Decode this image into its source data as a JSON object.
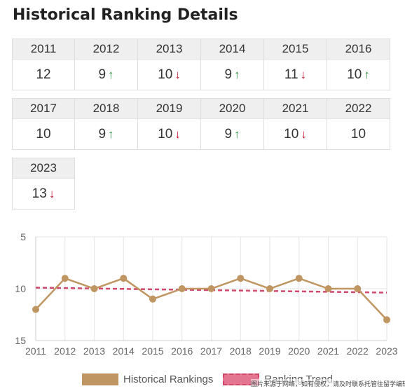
{
  "title": "Historical Ranking Details",
  "table": [
    {
      "year": "2011",
      "rank": "12",
      "trend": ""
    },
    {
      "year": "2012",
      "rank": "9",
      "trend": "up"
    },
    {
      "year": "2013",
      "rank": "10",
      "trend": "down"
    },
    {
      "year": "2014",
      "rank": "9",
      "trend": "up"
    },
    {
      "year": "2015",
      "rank": "11",
      "trend": "down"
    },
    {
      "year": "2016",
      "rank": "10",
      "trend": "up"
    },
    {
      "year": "2017",
      "rank": "10",
      "trend": ""
    },
    {
      "year": "2018",
      "rank": "9",
      "trend": "up"
    },
    {
      "year": "2019",
      "rank": "10",
      "trend": "down"
    },
    {
      "year": "2020",
      "rank": "9",
      "trend": "up"
    },
    {
      "year": "2021",
      "rank": "10",
      "trend": "down"
    },
    {
      "year": "2022",
      "rank": "10",
      "trend": ""
    },
    {
      "year": "2023",
      "rank": "13",
      "trend": "down"
    }
  ],
  "arrows": {
    "up": "↑",
    "down": "↓"
  },
  "chart_data": {
    "type": "line",
    "x": [
      "2011",
      "2012",
      "2013",
      "2014",
      "2015",
      "2016",
      "2017",
      "2018",
      "2019",
      "2020",
      "2021",
      "2022",
      "2023"
    ],
    "series": [
      {
        "name": "Historical Rankings",
        "values": [
          12,
          9,
          10,
          9,
          11,
          10,
          10,
          9,
          10,
          9,
          10,
          10,
          13
        ],
        "color": "#bf9561"
      },
      {
        "name": "Ranking Trend",
        "values": [
          9.9,
          9.94,
          9.98,
          10.02,
          10.06,
          10.1,
          10.14,
          10.18,
          10.22,
          10.26,
          10.3,
          10.34,
          10.38
        ],
        "color": "#d2476b",
        "dashed": true
      }
    ],
    "y_ticks": [
      "5",
      "10",
      "15"
    ],
    "ylim": [
      5,
      15
    ],
    "y_reversed": true,
    "grid": true,
    "legend_position": "bottom"
  },
  "watermark": "图片来源于网络，如有侵权，请及时联系托管往留学编辑"
}
